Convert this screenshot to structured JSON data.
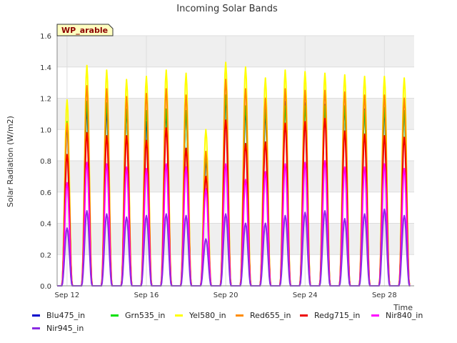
{
  "chart_data": {
    "type": "line",
    "title": "Incoming Solar Bands",
    "xlabel": "Time",
    "ylabel": "Solar Radiation (W/m2)",
    "annotation": "WP_arable",
    "ylim": [
      0.0,
      1.6
    ],
    "yticks": [
      "0.0",
      "0.2",
      "0.4",
      "0.6",
      "0.8",
      "1.0",
      "1.2",
      "1.4",
      "1.6"
    ],
    "xlim_days": [
      11.5,
      29.5
    ],
    "xticks": [
      {
        "label": "Sep 12",
        "day": 12
      },
      {
        "label": "Sep 16",
        "day": 16
      },
      {
        "label": "Sep 20",
        "day": 20
      },
      {
        "label": "Sep 24",
        "day": 24
      },
      {
        "label": "Sep 28",
        "day": 28
      }
    ],
    "grid": true,
    "legend_position": "bottom",
    "days": [
      12,
      13,
      14,
      15,
      16,
      17,
      18,
      19,
      20,
      21,
      22,
      23,
      24,
      25,
      26,
      27,
      28,
      29
    ],
    "series": [
      {
        "name": "Blu475_in",
        "color": "#0000cc",
        "daily_peak": [
          1.02,
          1.13,
          1.12,
          1.12,
          1.05,
          1.1,
          1.12,
          0.8,
          1.2,
          1.12,
          1.1,
          1.18,
          1.17,
          1.16,
          1.14,
          1.13,
          1.12,
          1.12
        ]
      },
      {
        "name": "Grn535_in",
        "color": "#00e000",
        "daily_peak": [
          1.05,
          1.18,
          1.17,
          1.13,
          1.12,
          1.13,
          1.12,
          0.83,
          1.22,
          1.15,
          1.13,
          1.15,
          1.15,
          1.15,
          1.15,
          1.12,
          1.14,
          1.12
        ]
      },
      {
        "name": "Yel580_in",
        "color": "#ffff00",
        "daily_peak": [
          1.19,
          1.41,
          1.38,
          1.32,
          1.34,
          1.38,
          1.36,
          1.0,
          1.43,
          1.4,
          1.33,
          1.38,
          1.37,
          1.36,
          1.35,
          1.34,
          1.34,
          1.33
        ]
      },
      {
        "name": "Red655_in",
        "color": "#ff8c00",
        "daily_peak": [
          1.04,
          1.28,
          1.26,
          1.21,
          1.23,
          1.26,
          1.22,
          0.86,
          1.32,
          1.26,
          1.2,
          1.26,
          1.25,
          1.25,
          1.24,
          1.22,
          1.22,
          1.2
        ]
      },
      {
        "name": "Redg715_in",
        "color": "#ee0000",
        "daily_peak": [
          0.84,
          0.98,
          0.96,
          0.96,
          0.93,
          1.01,
          0.88,
          0.7,
          1.06,
          0.91,
          0.92,
          1.04,
          1.05,
          1.07,
          0.99,
          0.97,
          0.96,
          0.95
        ]
      },
      {
        "name": "Nir840_in",
        "color": "#ff00ff",
        "daily_peak": [
          0.66,
          0.79,
          0.78,
          0.76,
          0.75,
          0.78,
          0.76,
          0.62,
          0.78,
          0.68,
          0.73,
          0.78,
          0.79,
          0.8,
          0.76,
          0.76,
          0.78,
          0.75
        ]
      },
      {
        "name": "Nir945_in",
        "color": "#8a2be2",
        "daily_peak": [
          0.37,
          0.48,
          0.46,
          0.44,
          0.45,
          0.46,
          0.45,
          0.3,
          0.46,
          0.4,
          0.4,
          0.45,
          0.47,
          0.48,
          0.43,
          0.46,
          0.49,
          0.45
        ]
      }
    ]
  }
}
